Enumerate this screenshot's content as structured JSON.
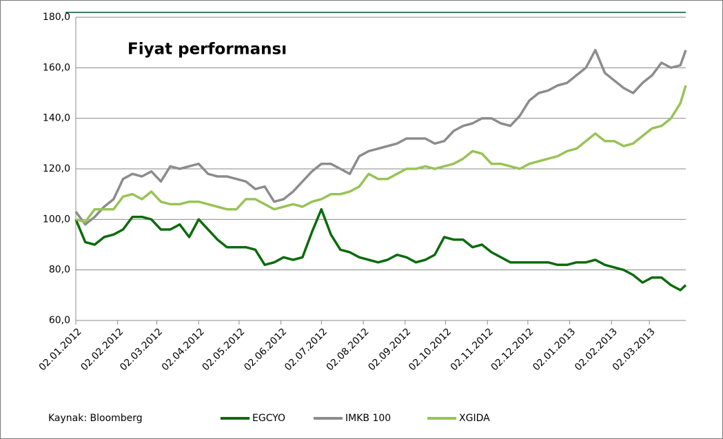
{
  "chart_data": {
    "type": "line",
    "title": "Fiyat performansı",
    "source": "Kaynak: Bloomberg",
    "x": [
      "02.01.2012",
      "09.01.2012",
      "16.01.2012",
      "23.01.2012",
      "30.01.2012",
      "06.02.2012",
      "13.02.2012",
      "20.02.2012",
      "27.02.2012",
      "05.03.2012",
      "12.03.2012",
      "19.03.2012",
      "26.03.2012",
      "02.04.2012",
      "09.04.2012",
      "16.04.2012",
      "23.04.2012",
      "30.04.2012",
      "07.05.2012",
      "14.05.2012",
      "21.05.2012",
      "28.05.2012",
      "04.06.2012",
      "11.06.2012",
      "18.06.2012",
      "25.06.2012",
      "02.07.2012",
      "09.07.2012",
      "16.07.2012",
      "23.07.2012",
      "30.07.2012",
      "06.08.2012",
      "13.08.2012",
      "20.08.2012",
      "27.08.2012",
      "03.09.2012",
      "10.09.2012",
      "17.09.2012",
      "24.09.2012",
      "01.10.2012",
      "08.10.2012",
      "15.10.2012",
      "22.10.2012",
      "29.10.2012",
      "05.11.2012",
      "12.11.2012",
      "19.11.2012",
      "26.11.2012",
      "03.12.2012",
      "10.12.2012",
      "17.12.2012",
      "24.12.2012",
      "31.12.2012",
      "07.01.2013",
      "14.01.2013",
      "21.01.2013",
      "28.01.2013",
      "04.02.2013",
      "11.02.2013",
      "18.02.2013",
      "25.02.2013",
      "04.03.2013",
      "11.03.2013",
      "18.03.2013",
      "25.03.2013",
      "29.03.2013"
    ],
    "series": [
      {
        "name": "EGCYO",
        "color": "#0b6b0b",
        "values": [
          100,
          91,
          90,
          93,
          94,
          96,
          101,
          101,
          100,
          96,
          96,
          98,
          93,
          100,
          96,
          92,
          89,
          89,
          89,
          88,
          82,
          83,
          85,
          84,
          85,
          95,
          104,
          94,
          88,
          87,
          85,
          84,
          83,
          84,
          86,
          85,
          83,
          84,
          86,
          93,
          92,
          92,
          89,
          90,
          87,
          85,
          83,
          83,
          83,
          83,
          83,
          82,
          82,
          83,
          83,
          84,
          82,
          81,
          80,
          78,
          75,
          77,
          77,
          74,
          72,
          74
        ]
      },
      {
        "name": "IMKB 100",
        "color": "#8c8c8c",
        "values": [
          103,
          98,
          101,
          105,
          108,
          116,
          118,
          117,
          119,
          115,
          121,
          120,
          121,
          122,
          118,
          117,
          117,
          116,
          115,
          112,
          113,
          107,
          108,
          111,
          115,
          119,
          122,
          122,
          120,
          118,
          125,
          127,
          128,
          129,
          130,
          132,
          132,
          132,
          130,
          131,
          135,
          137,
          138,
          140,
          140,
          138,
          137,
          141,
          147,
          150,
          151,
          153,
          154,
          157,
          160,
          167,
          158,
          155,
          152,
          150,
          154,
          157,
          162,
          160,
          161,
          167
        ]
      },
      {
        "name": "XGIDA",
        "color": "#98c356",
        "values": [
          100,
          99,
          104,
          104,
          104,
          109,
          110,
          108,
          111,
          107,
          106,
          106,
          107,
          107,
          106,
          105,
          104,
          104,
          108,
          108,
          106,
          104,
          105,
          106,
          105,
          107,
          108,
          110,
          110,
          111,
          113,
          118,
          116,
          116,
          118,
          120,
          120,
          121,
          120,
          121,
          122,
          124,
          127,
          126,
          122,
          122,
          121,
          120,
          122,
          123,
          124,
          125,
          127,
          128,
          131,
          134,
          131,
          131,
          129,
          130,
          133,
          136,
          137,
          140,
          146,
          153
        ]
      }
    ],
    "xlim": [
      "02.01.2012",
      "29.03.2013"
    ],
    "xticks": [
      "02.01.2012",
      "02.02.2012",
      "02.03.2012",
      "02.04.2012",
      "02.05.2012",
      "02.06.2012",
      "02.07.2012",
      "02.08.2012",
      "02.09.2012",
      "02.10.2012",
      "02.11.2012",
      "02.12.2012",
      "02.01.2013",
      "02.02.2013",
      "02.03.2013"
    ],
    "ylim": [
      60,
      180
    ],
    "yticks": [
      {
        "value": 60,
        "label": "60,0"
      },
      {
        "value": 80,
        "label": "80,0"
      },
      {
        "value": 100,
        "label": "100,0"
      },
      {
        "value": 120,
        "label": "120,0"
      },
      {
        "value": 140,
        "label": "140,0"
      },
      {
        "value": 160,
        "label": "160,0"
      },
      {
        "value": 180,
        "label": "180,0"
      }
    ],
    "grid": true
  }
}
